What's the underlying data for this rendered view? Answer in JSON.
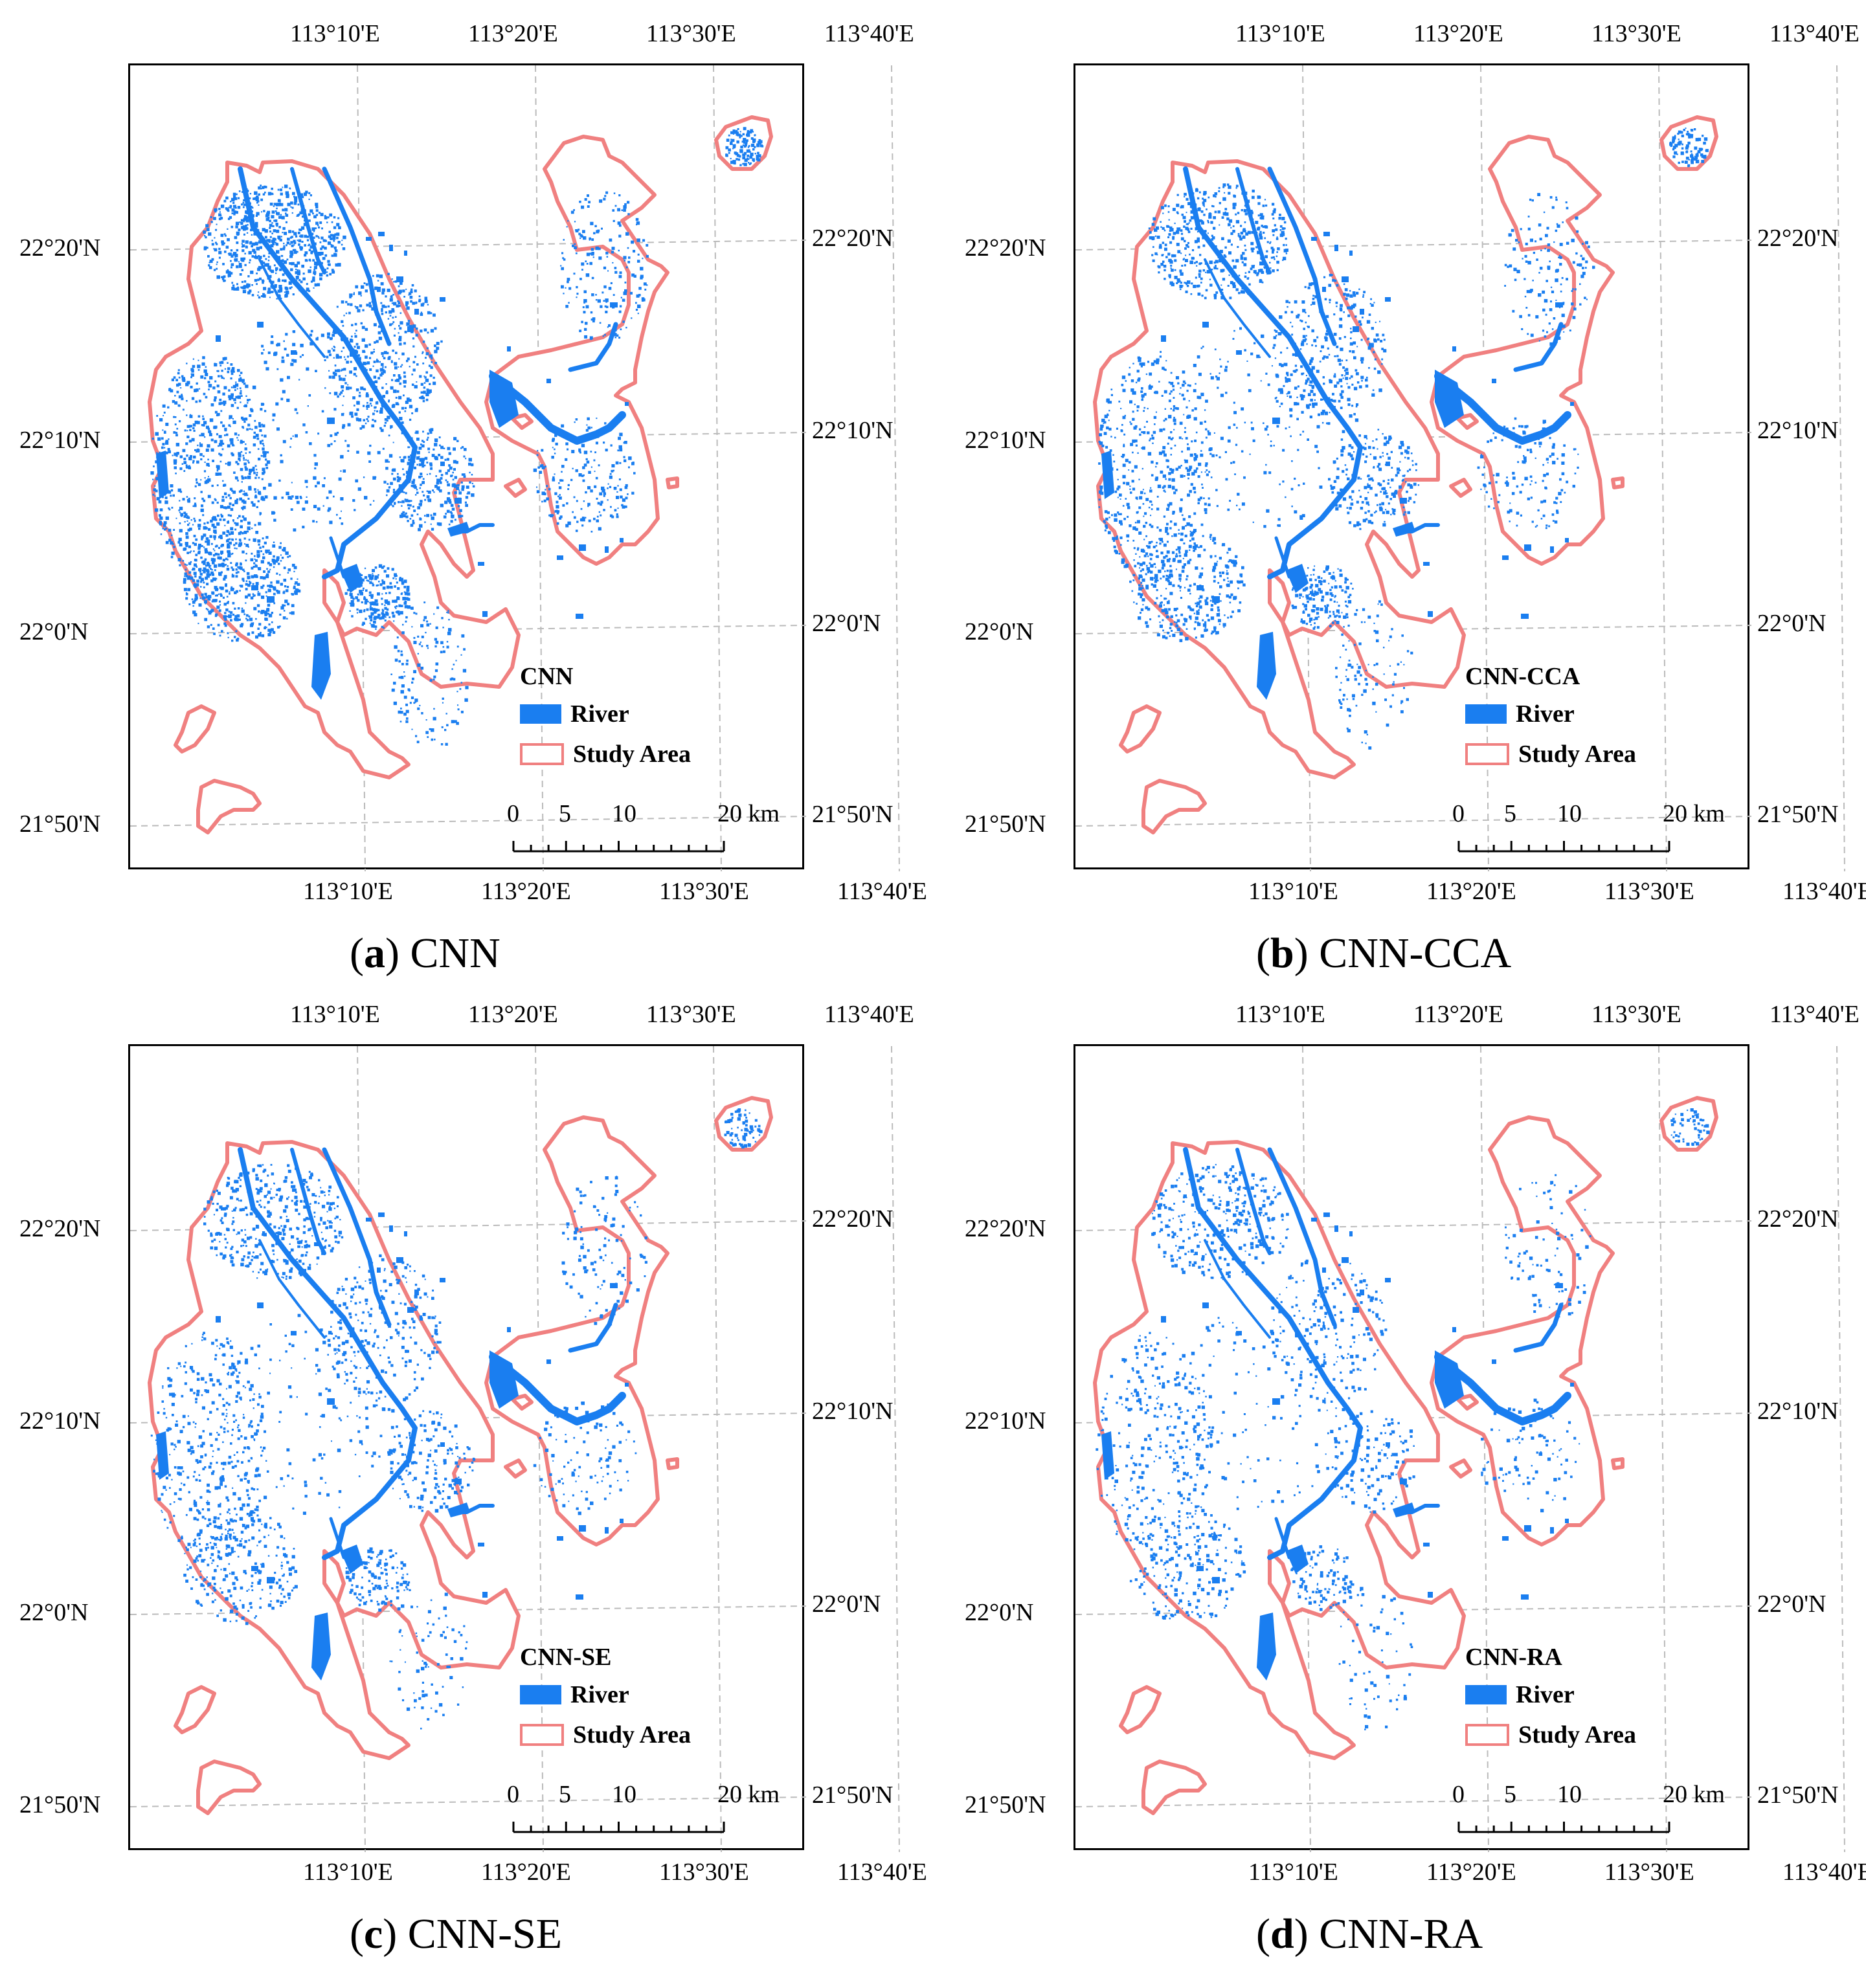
{
  "figure": {
    "colors": {
      "river": "#1a7ef0",
      "study_area": "#f08080",
      "grid": "#bbbbbb",
      "frame": "#000000"
    },
    "lon_labels": [
      "113°10'E",
      "113°20'E",
      "113°30'E",
      "113°40'E"
    ],
    "lat_labels_left": [
      "22°20'N",
      "22°10'N",
      "22°0'N",
      "21°50'N"
    ],
    "lat_labels_right": [
      "22°20'N",
      "22°10'N",
      "22°0'N",
      "21°50'N"
    ],
    "legend": {
      "river_label": "River",
      "study_area_label": "Study Area"
    },
    "scale_bar": {
      "ticks": [
        "0",
        "5",
        "10",
        "20 km"
      ]
    },
    "panels": [
      {
        "id": "a",
        "letter": "a",
        "name": "CNN",
        "legend_title": "CNN",
        "water_density": 1.0
      },
      {
        "id": "b",
        "letter": "b",
        "name": "CNN-CCA",
        "legend_title": "CNN-CCA",
        "water_density": 0.7
      },
      {
        "id": "c",
        "letter": "c",
        "name": "CNN-SE",
        "legend_title": "CNN-SE",
        "water_density": 0.55
      },
      {
        "id": "d",
        "letter": "d",
        "name": "CNN-RA",
        "legend_title": "CNN-RA",
        "water_density": 0.45
      }
    ]
  }
}
